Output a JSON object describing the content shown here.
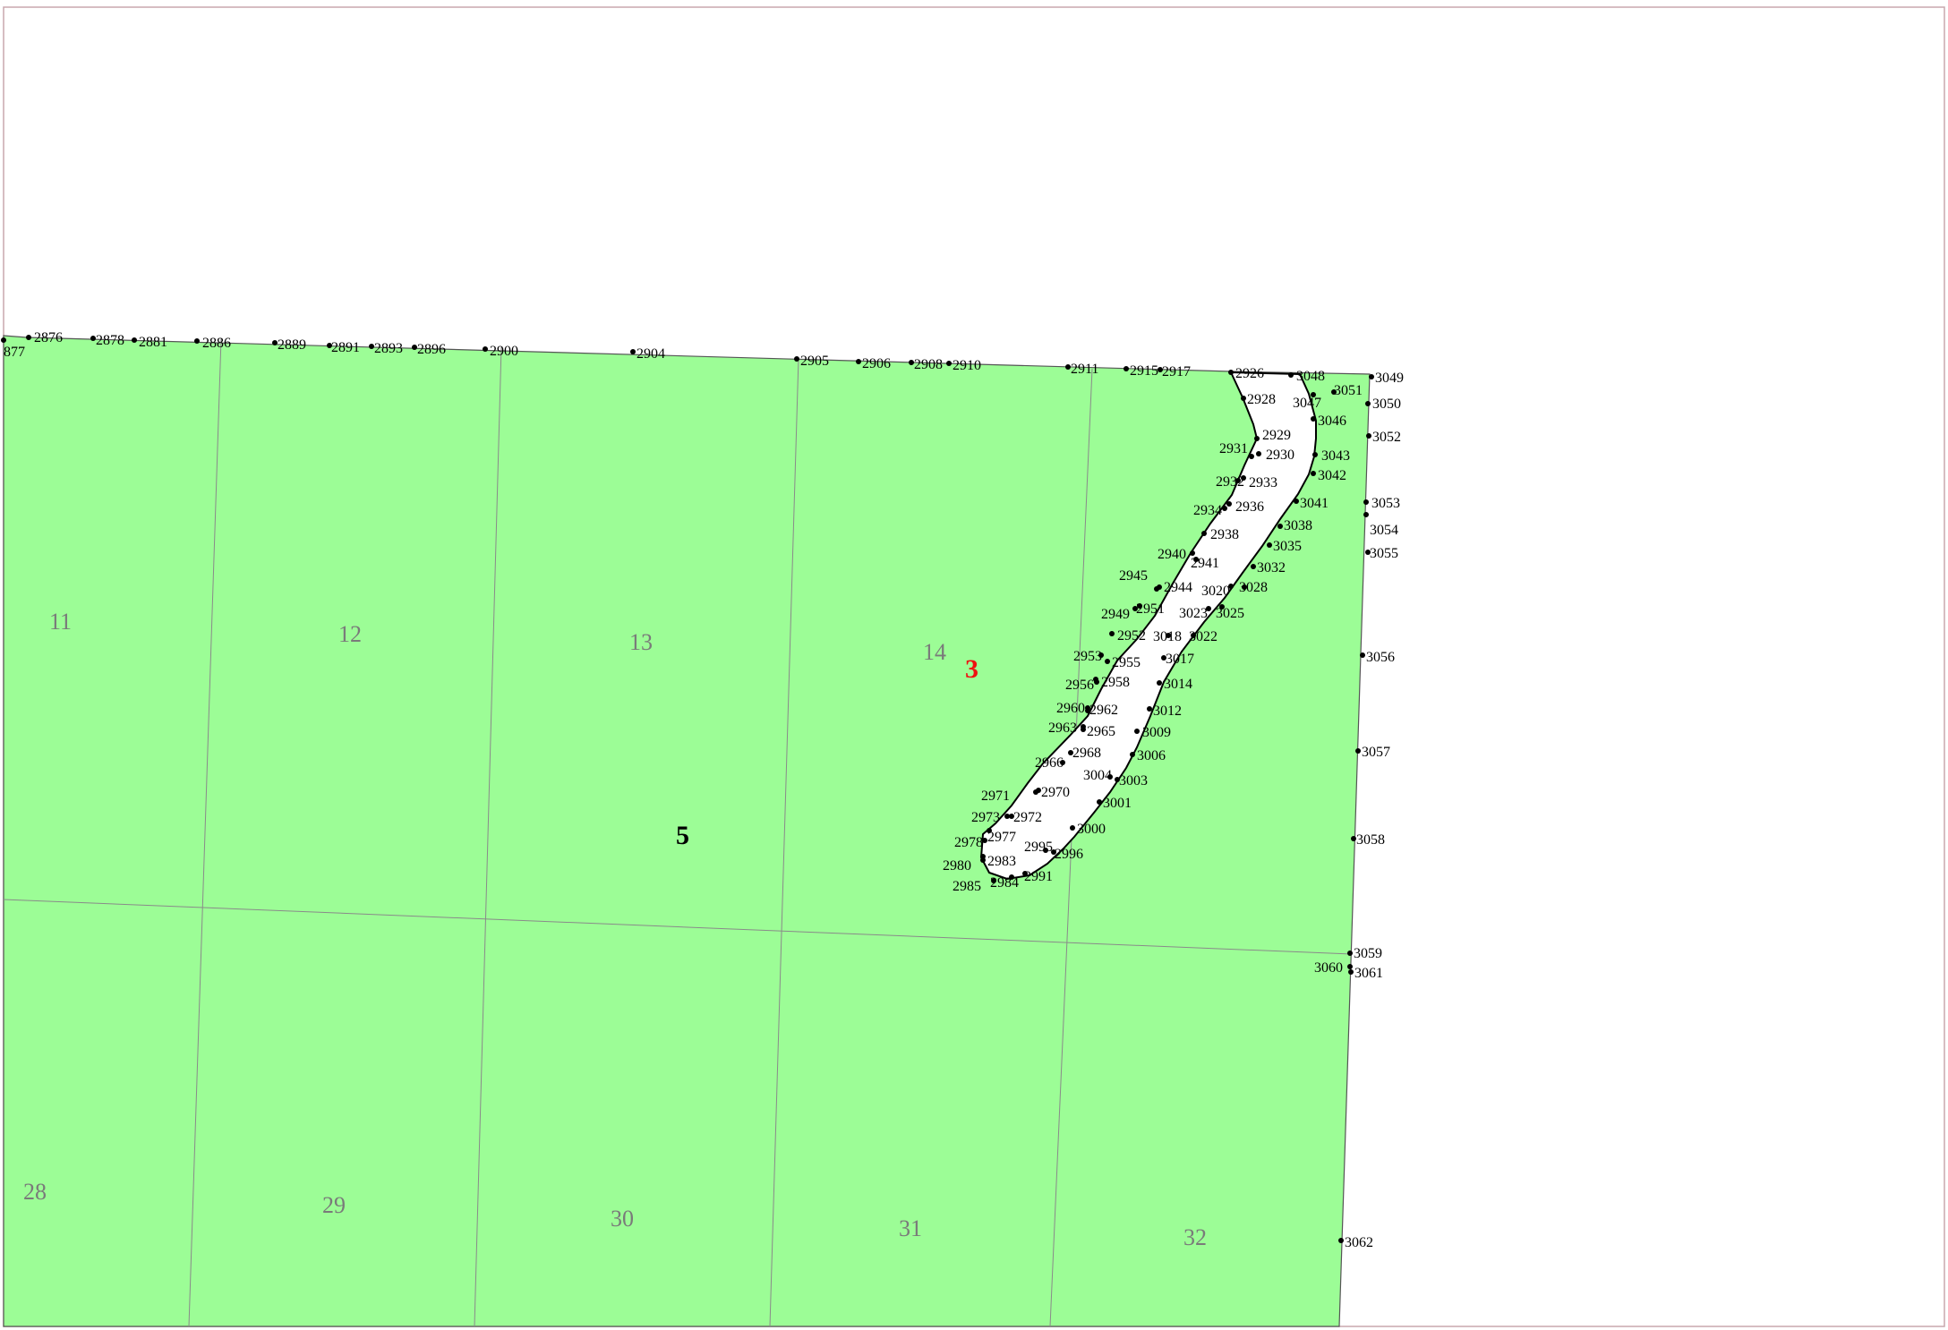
{
  "map": {
    "colors": {
      "parcel_fill": "#9cfd96",
      "hole_fill": "#ffffff",
      "grid_line": "#8a8a8a",
      "frame": "#c9a7ad",
      "highlight_label": "#e11111"
    },
    "parcel_labels": [
      {
        "text": "3",
        "color": "red"
      },
      {
        "text": "5",
        "color": "black"
      }
    ],
    "section_labels": [
      "11",
      "12",
      "13",
      "14",
      "28",
      "29",
      "30",
      "31",
      "32"
    ],
    "point_labels": [
      "877",
      "2876",
      "2878",
      "2881",
      "2886",
      "2889",
      "2891",
      "2893",
      "2896",
      "2900",
      "2904",
      "2905",
      "2906",
      "2908",
      "2910",
      "2911",
      "2915",
      "2917",
      "2926",
      "3048",
      "3049",
      "2928",
      "3047",
      "3051",
      "3050",
      "3046",
      "2929",
      "2931",
      "2930",
      "3043",
      "3052",
      "3042",
      "2932",
      "2933",
      "3041",
      "3053",
      "2934",
      "2936",
      "3038",
      "3054",
      "2938",
      "3035",
      "3055",
      "2940",
      "2941",
      "3032",
      "2945",
      "2944",
      "3020",
      "3028",
      "2949",
      "2951",
      "3023",
      "3025",
      "2952",
      "3018",
      "3022",
      "2953",
      "2955",
      "3017",
      "3056",
      "2956",
      "2958",
      "3014",
      "2960",
      "2962",
      "3012",
      "2963",
      "2965",
      "3009",
      "2968",
      "3006",
      "2966",
      "3057",
      "3004",
      "3003",
      "2971",
      "2970",
      "3001",
      "2973",
      "2972",
      "3000",
      "2977",
      "2978",
      "3058",
      "2995",
      "2996",
      "2980",
      "2983",
      "2991",
      "2985",
      "2984",
      "3059",
      "3060",
      "3061",
      "3062"
    ]
  }
}
